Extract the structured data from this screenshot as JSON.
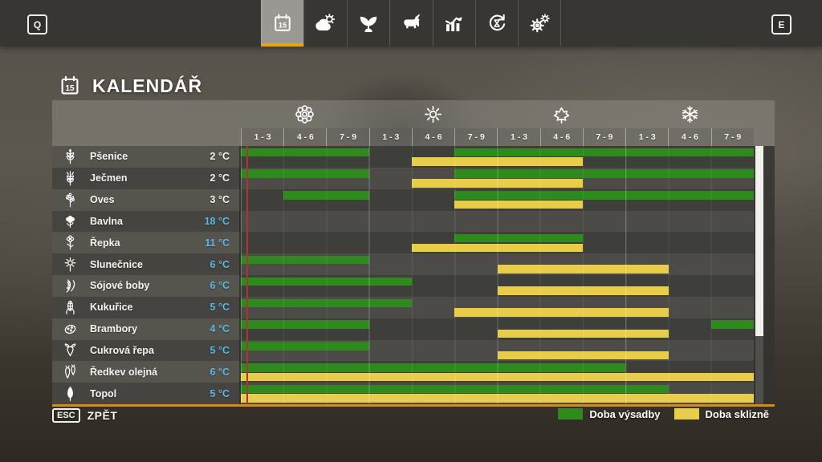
{
  "hud": {
    "key_prev": "Q",
    "key_next": "E"
  },
  "nav": {
    "accent_color": "#e7a414",
    "tabs": [
      {
        "id": "calendar",
        "icon": "calendar-icon",
        "active": true
      },
      {
        "id": "weather",
        "icon": "weather-icon",
        "active": false
      },
      {
        "id": "crops",
        "icon": "seedling-icon",
        "active": false
      },
      {
        "id": "animals",
        "icon": "cow-icon",
        "active": false
      },
      {
        "id": "statistics",
        "icon": "stats-icon",
        "active": false
      },
      {
        "id": "production",
        "icon": "cycle-icon",
        "active": false
      },
      {
        "id": "settings",
        "icon": "gears-icon",
        "active": false
      }
    ]
  },
  "page": {
    "title": "KALENDÁŘ",
    "title_icon": "calendar-icon"
  },
  "calendar": {
    "plant_color": "#2e8a1d",
    "harvest_color": "#e8cd4b",
    "temp_white_color": "#f2f2f0",
    "temp_blue_color": "#5fb7e5",
    "seasons": [
      {
        "name": "spring",
        "icon": "flower-icon",
        "periods": [
          "1 - 3",
          "4 - 6",
          "7 - 9"
        ]
      },
      {
        "name": "summer",
        "icon": "sun-icon",
        "periods": [
          "1 - 3",
          "4 - 6",
          "7 - 9"
        ]
      },
      {
        "name": "autumn",
        "icon": "maple-leaf-icon",
        "periods": [
          "1 - 3",
          "4 - 6",
          "7 - 9"
        ]
      },
      {
        "name": "winter",
        "icon": "snowflake-icon",
        "periods": [
          "1 - 3",
          "4 - 6",
          "7 - 9"
        ]
      }
    ],
    "current_marker": {
      "column": 1,
      "fraction": 0.13
    },
    "rows": [
      {
        "crop": "Pšenice",
        "icon": "wheat-icon",
        "temp": "2 °C",
        "temp_color": "white",
        "plant": [
          [
            1,
            3
          ],
          [
            6,
            12
          ]
        ],
        "harvest": [
          [
            5,
            8
          ]
        ]
      },
      {
        "crop": "Ječmen",
        "icon": "barley-icon",
        "temp": "2 °C",
        "temp_color": "white",
        "plant": [
          [
            1,
            3
          ],
          [
            6,
            12
          ]
        ],
        "harvest": [
          [
            5,
            8
          ]
        ]
      },
      {
        "crop": "Oves",
        "icon": "oat-icon",
        "temp": "3 °C",
        "temp_color": "white",
        "plant": [
          [
            2,
            3
          ],
          [
            6,
            12
          ]
        ],
        "harvest": [
          [
            6,
            8
          ]
        ]
      },
      {
        "crop": "Bavlna",
        "icon": "cotton-icon",
        "temp": "18 °C",
        "temp_color": "blue",
        "plant": [],
        "harvest": []
      },
      {
        "crop": "Řepka",
        "icon": "canola-icon",
        "temp": "11 °C",
        "temp_color": "blue",
        "plant": [
          [
            6,
            8
          ]
        ],
        "harvest": [
          [
            5,
            8
          ]
        ]
      },
      {
        "crop": "Slunečnice",
        "icon": "sunflower-icon",
        "temp": "6 °C",
        "temp_color": "blue",
        "plant": [
          [
            1,
            3
          ]
        ],
        "harvest": [
          [
            7,
            10
          ]
        ]
      },
      {
        "crop": "Sójové boby",
        "icon": "soybean-icon",
        "temp": "6 °C",
        "temp_color": "blue",
        "plant": [
          [
            1,
            4
          ]
        ],
        "harvest": [
          [
            7,
            10
          ]
        ]
      },
      {
        "crop": "Kukuřice",
        "icon": "corn-icon",
        "temp": "5 °C",
        "temp_color": "blue",
        "plant": [
          [
            1,
            4
          ]
        ],
        "harvest": [
          [
            6,
            10
          ]
        ]
      },
      {
        "crop": "Brambory",
        "icon": "potato-icon",
        "temp": "4 °C",
        "temp_color": "blue",
        "plant": [
          [
            1,
            3
          ],
          [
            12,
            12
          ]
        ],
        "harvest": [
          [
            7,
            10
          ]
        ]
      },
      {
        "crop": "Cukrová řepa",
        "icon": "sugarbeet-icon",
        "temp": "5 °C",
        "temp_color": "blue",
        "plant": [
          [
            1,
            3
          ]
        ],
        "harvest": [
          [
            7,
            10
          ]
        ]
      },
      {
        "crop": "Ředkev olejná",
        "icon": "radish-icon",
        "temp": "6 °C",
        "temp_color": "blue",
        "plant": [
          [
            1,
            9
          ]
        ],
        "harvest": [
          [
            1,
            12
          ]
        ]
      },
      {
        "crop": "Topol",
        "icon": "poplar-icon",
        "temp": "5 °C",
        "temp_color": "blue",
        "plant": [
          [
            1,
            10
          ]
        ],
        "harvest": [
          [
            1,
            12
          ]
        ]
      }
    ],
    "legend": [
      {
        "label": "Doba výsadby",
        "type": "plant"
      },
      {
        "label": "Doba sklizně",
        "type": "harvest"
      }
    ]
  },
  "footer": {
    "back_key": "ESC",
    "back_label": "ZPĚT"
  }
}
